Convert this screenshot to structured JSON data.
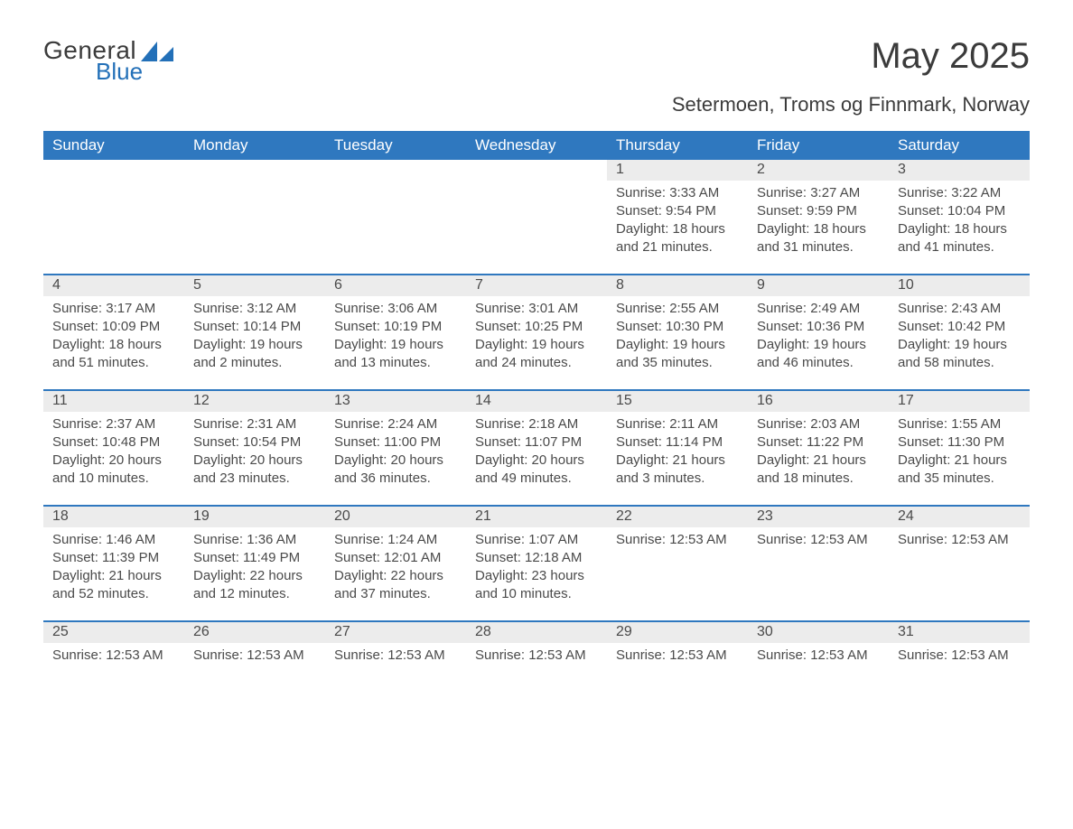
{
  "logo": {
    "text_general": "General",
    "text_blue": "Blue",
    "icon_color": "#2370b8"
  },
  "title": "May 2025",
  "location": "Setermoen, Troms og Finnmark, Norway",
  "colors": {
    "header_bg": "#2f78bf",
    "header_text": "#ffffff",
    "daynum_bg": "#ececec",
    "text": "#4a4a4a",
    "row_border": "#2f78bf"
  },
  "weekdays": [
    "Sunday",
    "Monday",
    "Tuesday",
    "Wednesday",
    "Thursday",
    "Friday",
    "Saturday"
  ],
  "weeks": [
    [
      {
        "empty": true
      },
      {
        "empty": true
      },
      {
        "empty": true
      },
      {
        "empty": true
      },
      {
        "num": "1",
        "lines": [
          "Sunrise: 3:33 AM",
          "Sunset: 9:54 PM",
          "Daylight: 18 hours",
          "and 21 minutes."
        ]
      },
      {
        "num": "2",
        "lines": [
          "Sunrise: 3:27 AM",
          "Sunset: 9:59 PM",
          "Daylight: 18 hours",
          "and 31 minutes."
        ]
      },
      {
        "num": "3",
        "lines": [
          "Sunrise: 3:22 AM",
          "Sunset: 10:04 PM",
          "Daylight: 18 hours",
          "and 41 minutes."
        ]
      }
    ],
    [
      {
        "num": "4",
        "lines": [
          "Sunrise: 3:17 AM",
          "Sunset: 10:09 PM",
          "Daylight: 18 hours",
          "and 51 minutes."
        ]
      },
      {
        "num": "5",
        "lines": [
          "Sunrise: 3:12 AM",
          "Sunset: 10:14 PM",
          "Daylight: 19 hours",
          "and 2 minutes."
        ]
      },
      {
        "num": "6",
        "lines": [
          "Sunrise: 3:06 AM",
          "Sunset: 10:19 PM",
          "Daylight: 19 hours",
          "and 13 minutes."
        ]
      },
      {
        "num": "7",
        "lines": [
          "Sunrise: 3:01 AM",
          "Sunset: 10:25 PM",
          "Daylight: 19 hours",
          "and 24 minutes."
        ]
      },
      {
        "num": "8",
        "lines": [
          "Sunrise: 2:55 AM",
          "Sunset: 10:30 PM",
          "Daylight: 19 hours",
          "and 35 minutes."
        ]
      },
      {
        "num": "9",
        "lines": [
          "Sunrise: 2:49 AM",
          "Sunset: 10:36 PM",
          "Daylight: 19 hours",
          "and 46 minutes."
        ]
      },
      {
        "num": "10",
        "lines": [
          "Sunrise: 2:43 AM",
          "Sunset: 10:42 PM",
          "Daylight: 19 hours",
          "and 58 minutes."
        ]
      }
    ],
    [
      {
        "num": "11",
        "lines": [
          "Sunrise: 2:37 AM",
          "Sunset: 10:48 PM",
          "Daylight: 20 hours",
          "and 10 minutes."
        ]
      },
      {
        "num": "12",
        "lines": [
          "Sunrise: 2:31 AM",
          "Sunset: 10:54 PM",
          "Daylight: 20 hours",
          "and 23 minutes."
        ]
      },
      {
        "num": "13",
        "lines": [
          "Sunrise: 2:24 AM",
          "Sunset: 11:00 PM",
          "Daylight: 20 hours",
          "and 36 minutes."
        ]
      },
      {
        "num": "14",
        "lines": [
          "Sunrise: 2:18 AM",
          "Sunset: 11:07 PM",
          "Daylight: 20 hours",
          "and 49 minutes."
        ]
      },
      {
        "num": "15",
        "lines": [
          "Sunrise: 2:11 AM",
          "Sunset: 11:14 PM",
          "Daylight: 21 hours",
          "and 3 minutes."
        ]
      },
      {
        "num": "16",
        "lines": [
          "Sunrise: 2:03 AM",
          "Sunset: 11:22 PM",
          "Daylight: 21 hours",
          "and 18 minutes."
        ]
      },
      {
        "num": "17",
        "lines": [
          "Sunrise: 1:55 AM",
          "Sunset: 11:30 PM",
          "Daylight: 21 hours",
          "and 35 minutes."
        ]
      }
    ],
    [
      {
        "num": "18",
        "lines": [
          "Sunrise: 1:46 AM",
          "Sunset: 11:39 PM",
          "Daylight: 21 hours",
          "and 52 minutes."
        ]
      },
      {
        "num": "19",
        "lines": [
          "Sunrise: 1:36 AM",
          "Sunset: 11:49 PM",
          "Daylight: 22 hours",
          "and 12 minutes."
        ]
      },
      {
        "num": "20",
        "lines": [
          "Sunrise: 1:24 AM",
          "Sunset: 12:01 AM",
          "Daylight: 22 hours",
          "and 37 minutes."
        ]
      },
      {
        "num": "21",
        "lines": [
          "Sunrise: 1:07 AM",
          "Sunset: 12:18 AM",
          "Daylight: 23 hours",
          "and 10 minutes."
        ]
      },
      {
        "num": "22",
        "lines": [
          "Sunrise: 12:53 AM"
        ]
      },
      {
        "num": "23",
        "lines": [
          "Sunrise: 12:53 AM"
        ]
      },
      {
        "num": "24",
        "lines": [
          "Sunrise: 12:53 AM"
        ]
      }
    ],
    [
      {
        "num": "25",
        "lines": [
          "Sunrise: 12:53 AM"
        ]
      },
      {
        "num": "26",
        "lines": [
          "Sunrise: 12:53 AM"
        ]
      },
      {
        "num": "27",
        "lines": [
          "Sunrise: 12:53 AM"
        ]
      },
      {
        "num": "28",
        "lines": [
          "Sunrise: 12:53 AM"
        ]
      },
      {
        "num": "29",
        "lines": [
          "Sunrise: 12:53 AM"
        ]
      },
      {
        "num": "30",
        "lines": [
          "Sunrise: 12:53 AM"
        ]
      },
      {
        "num": "31",
        "lines": [
          "Sunrise: 12:53 AM"
        ]
      }
    ]
  ]
}
